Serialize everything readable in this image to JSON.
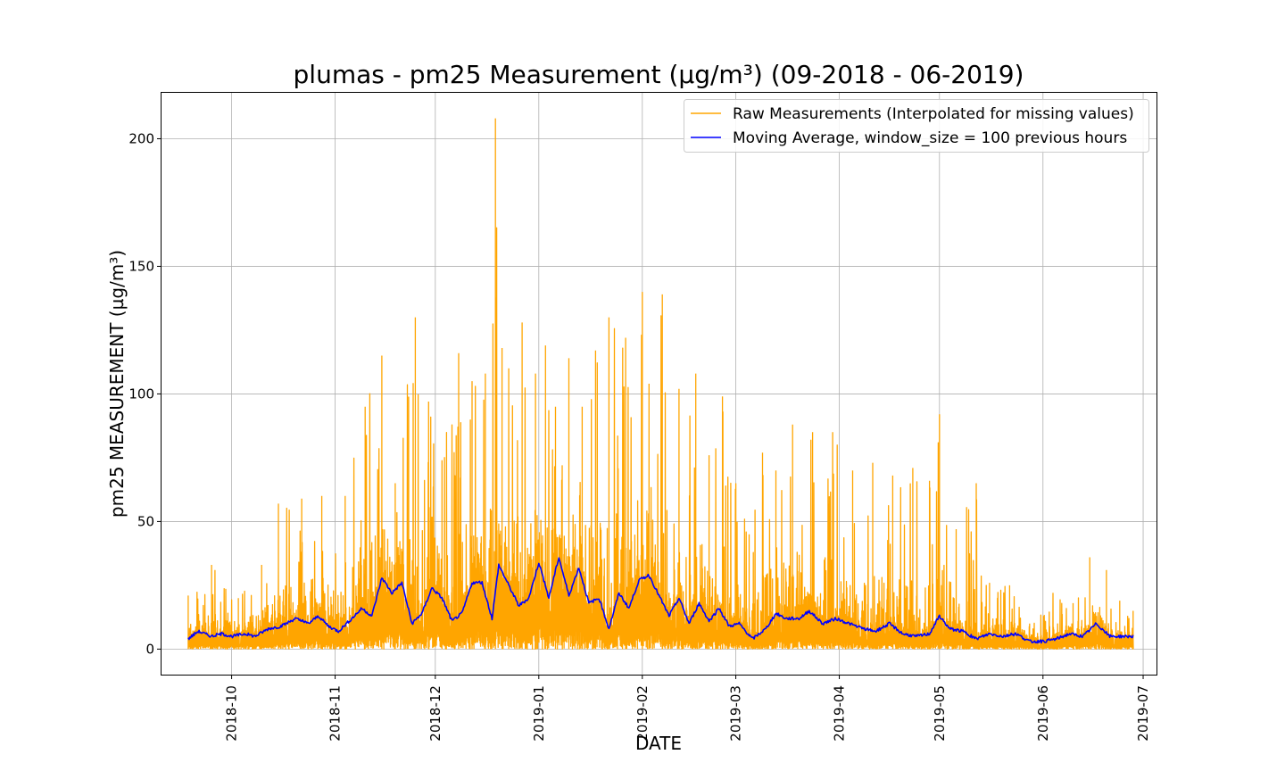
{
  "chart_data": {
    "type": "line",
    "title": "plumas - pm25 Measurement (µg/m³) (09-2018 - 06-2019)",
    "xlabel": "DATE",
    "ylabel": "pm25 MEASUREMENT (µg/m³)",
    "x_range": [
      "2018-09-10",
      "2019-07-05"
    ],
    "ylim": [
      -10,
      218
    ],
    "yticks": [
      0,
      50,
      100,
      150,
      200
    ],
    "xticks": [
      "2018-10",
      "2018-11",
      "2018-12",
      "2019-01",
      "2019-02",
      "2019-03",
      "2019-04",
      "2019-05",
      "2019-06",
      "2019-07"
    ],
    "grid": true,
    "legend_position": "top-right",
    "colors": {
      "raw": "#FFA500",
      "moving_average": "#0000FF"
    },
    "series": [
      {
        "name": "Raw Measurements (Interpolated for missing values)",
        "style": "line",
        "date_range": [
          "2018-09-18",
          "2019-06-28"
        ],
        "envelope": {
          "dates": [
            "2018-09-18",
            "2018-09-25",
            "2018-10-03",
            "2018-10-10",
            "2018-10-15",
            "2018-10-22",
            "2018-10-28",
            "2018-11-04",
            "2018-11-10",
            "2018-11-15",
            "2018-11-19",
            "2018-11-25",
            "2018-11-29",
            "2018-12-03",
            "2018-12-08",
            "2018-12-12",
            "2018-12-16",
            "2018-12-19",
            "2018-12-21",
            "2018-12-23",
            "2018-12-27",
            "2018-12-31",
            "2019-01-03",
            "2019-01-06",
            "2019-01-10",
            "2019-01-14",
            "2019-01-18",
            "2019-01-22",
            "2019-01-27",
            "2019-02-01",
            "2019-02-03",
            "2019-02-07",
            "2019-02-12",
            "2019-02-17",
            "2019-02-21",
            "2019-02-25",
            "2019-03-01",
            "2019-03-05",
            "2019-03-09",
            "2019-03-13",
            "2019-03-18",
            "2019-03-24",
            "2019-03-30",
            "2019-04-05",
            "2019-04-11",
            "2019-04-17",
            "2019-04-23",
            "2019-04-28",
            "2019-05-01",
            "2019-05-06",
            "2019-05-12",
            "2019-05-16",
            "2019-05-22",
            "2019-05-28",
            "2019-06-04",
            "2019-06-10",
            "2019-06-15",
            "2019-06-20",
            "2019-06-24",
            "2019-06-28"
          ],
          "peaks": [
            21,
            33,
            20,
            33,
            57,
            59,
            60,
            60,
            95,
            115,
            65,
            130,
            97,
            74,
            116,
            105,
            108,
            208,
            118,
            110,
            128,
            108,
            119,
            95,
            114,
            95,
            117,
            130,
            122,
            140,
            104,
            139,
            102,
            108,
            76,
            99,
            65,
            45,
            77,
            70,
            88,
            85,
            85,
            70,
            73,
            68,
            71,
            66,
            92,
            47,
            65,
            26,
            25,
            10,
            22,
            18,
            36,
            31,
            19,
            15
          ]
        }
      },
      {
        "name": "Moving Average, window_size = 100 previous hours",
        "style": "line",
        "dates": [
          "2018-09-18",
          "2018-09-21",
          "2018-09-25",
          "2018-09-28",
          "2018-10-01",
          "2018-10-05",
          "2018-10-08",
          "2018-10-12",
          "2018-10-16",
          "2018-10-20",
          "2018-10-24",
          "2018-10-27",
          "2018-10-30",
          "2018-11-02",
          "2018-11-06",
          "2018-11-09",
          "2018-11-12",
          "2018-11-15",
          "2018-11-18",
          "2018-11-21",
          "2018-11-24",
          "2018-11-27",
          "2018-11-30",
          "2018-12-03",
          "2018-12-06",
          "2018-12-09",
          "2018-12-12",
          "2018-12-15",
          "2018-12-18",
          "2018-12-20",
          "2018-12-23",
          "2018-12-26",
          "2018-12-29",
          "2019-01-01",
          "2019-01-04",
          "2019-01-07",
          "2019-01-10",
          "2019-01-13",
          "2019-01-16",
          "2019-01-19",
          "2019-01-22",
          "2019-01-25",
          "2019-01-28",
          "2019-01-31",
          "2019-02-03",
          "2019-02-06",
          "2019-02-09",
          "2019-02-12",
          "2019-02-15",
          "2019-02-18",
          "2019-02-21",
          "2019-02-24",
          "2019-02-27",
          "2019-03-02",
          "2019-03-06",
          "2019-03-10",
          "2019-03-13",
          "2019-03-16",
          "2019-03-20",
          "2019-03-23",
          "2019-03-27",
          "2019-03-31",
          "2019-04-04",
          "2019-04-08",
          "2019-04-12",
          "2019-04-16",
          "2019-04-20",
          "2019-04-24",
          "2019-04-28",
          "2019-05-01",
          "2019-05-04",
          "2019-05-08",
          "2019-05-12",
          "2019-05-16",
          "2019-05-20",
          "2019-05-24",
          "2019-05-28",
          "2019-06-01",
          "2019-06-05",
          "2019-06-09",
          "2019-06-13",
          "2019-06-17",
          "2019-06-21",
          "2019-06-25",
          "2019-06-28"
        ],
        "values": [
          4,
          7,
          5,
          6,
          5,
          6,
          5,
          8,
          9,
          12,
          10,
          13,
          9,
          7,
          12,
          16,
          13,
          28,
          22,
          26,
          10,
          14,
          24,
          20,
          11,
          14,
          26,
          26,
          12,
          33,
          25,
          17,
          20,
          34,
          20,
          36,
          21,
          32,
          18,
          20,
          8,
          22,
          16,
          27,
          29,
          21,
          13,
          20,
          10,
          18,
          11,
          16,
          9,
          10,
          4,
          8,
          14,
          12,
          12,
          15,
          10,
          12,
          10,
          8,
          7,
          10,
          6,
          5,
          6,
          13,
          8,
          7,
          4,
          6,
          5,
          6,
          3,
          3,
          4,
          6,
          5,
          10,
          5,
          5,
          5
        ]
      }
    ]
  }
}
